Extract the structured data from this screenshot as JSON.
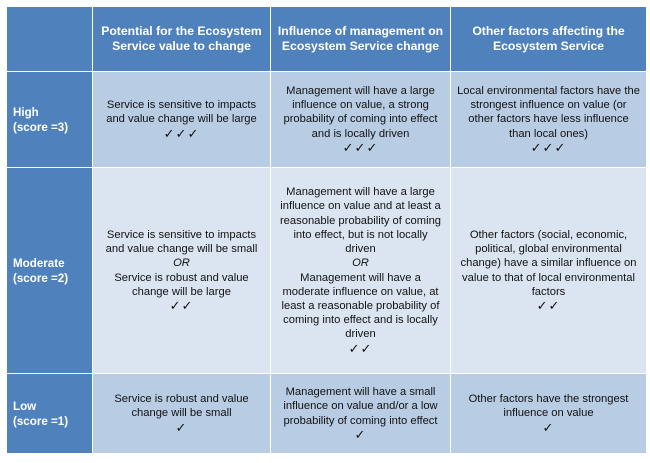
{
  "header": {
    "corner": "",
    "col1": "Potential for the Ecosystem Service value to change",
    "col2": "Influence of management on Ecosystem Service change",
    "col3": "Other factors affecting the Ecosystem Service"
  },
  "rows": [
    {
      "level": "High",
      "score": "(score =3)",
      "col1": {
        "text": "Service is sensitive to impacts and value change will be large",
        "ticks": "✓✓✓"
      },
      "col2": {
        "text": "Management will have a large influence on value, a strong probability of coming into effect and is locally driven",
        "ticks": "✓✓✓"
      },
      "col3": {
        "text": "Local environmental factors have the strongest influence on value (or other factors have less influence than local ones)",
        "ticks": "✓✓✓"
      }
    },
    {
      "level": "Moderate",
      "score": "(score =2)",
      "col1": {
        "text_a": "Service is sensitive to impacts and value change will be small",
        "or": "OR",
        "text_b": "Service is robust and value change will be large",
        "ticks": "✓✓"
      },
      "col2": {
        "text_a": "Management will have a large influence on value and at least a reasonable probability of coming into effect, but is not locally driven",
        "or": "OR",
        "text_b": "Management will have a moderate influence on value, at least a reasonable probability of coming into effect and is locally driven",
        "ticks": "✓✓"
      },
      "col3": {
        "text": "Other factors (social, economic, political, global environmental change) have a similar influence on value to that of local environmental factors",
        "ticks": "✓✓"
      }
    },
    {
      "level": "Low",
      "score": "(score =1)",
      "col1": {
        "text": "Service is robust and value change will be small",
        "ticks": "✓"
      },
      "col2": {
        "text": "Management will have a small influence on value and/or a low probability of coming into effect",
        "ticks": "✓"
      },
      "col3": {
        "text": "Other factors have the strongest influence on value",
        "ticks": "✓"
      }
    }
  ]
}
